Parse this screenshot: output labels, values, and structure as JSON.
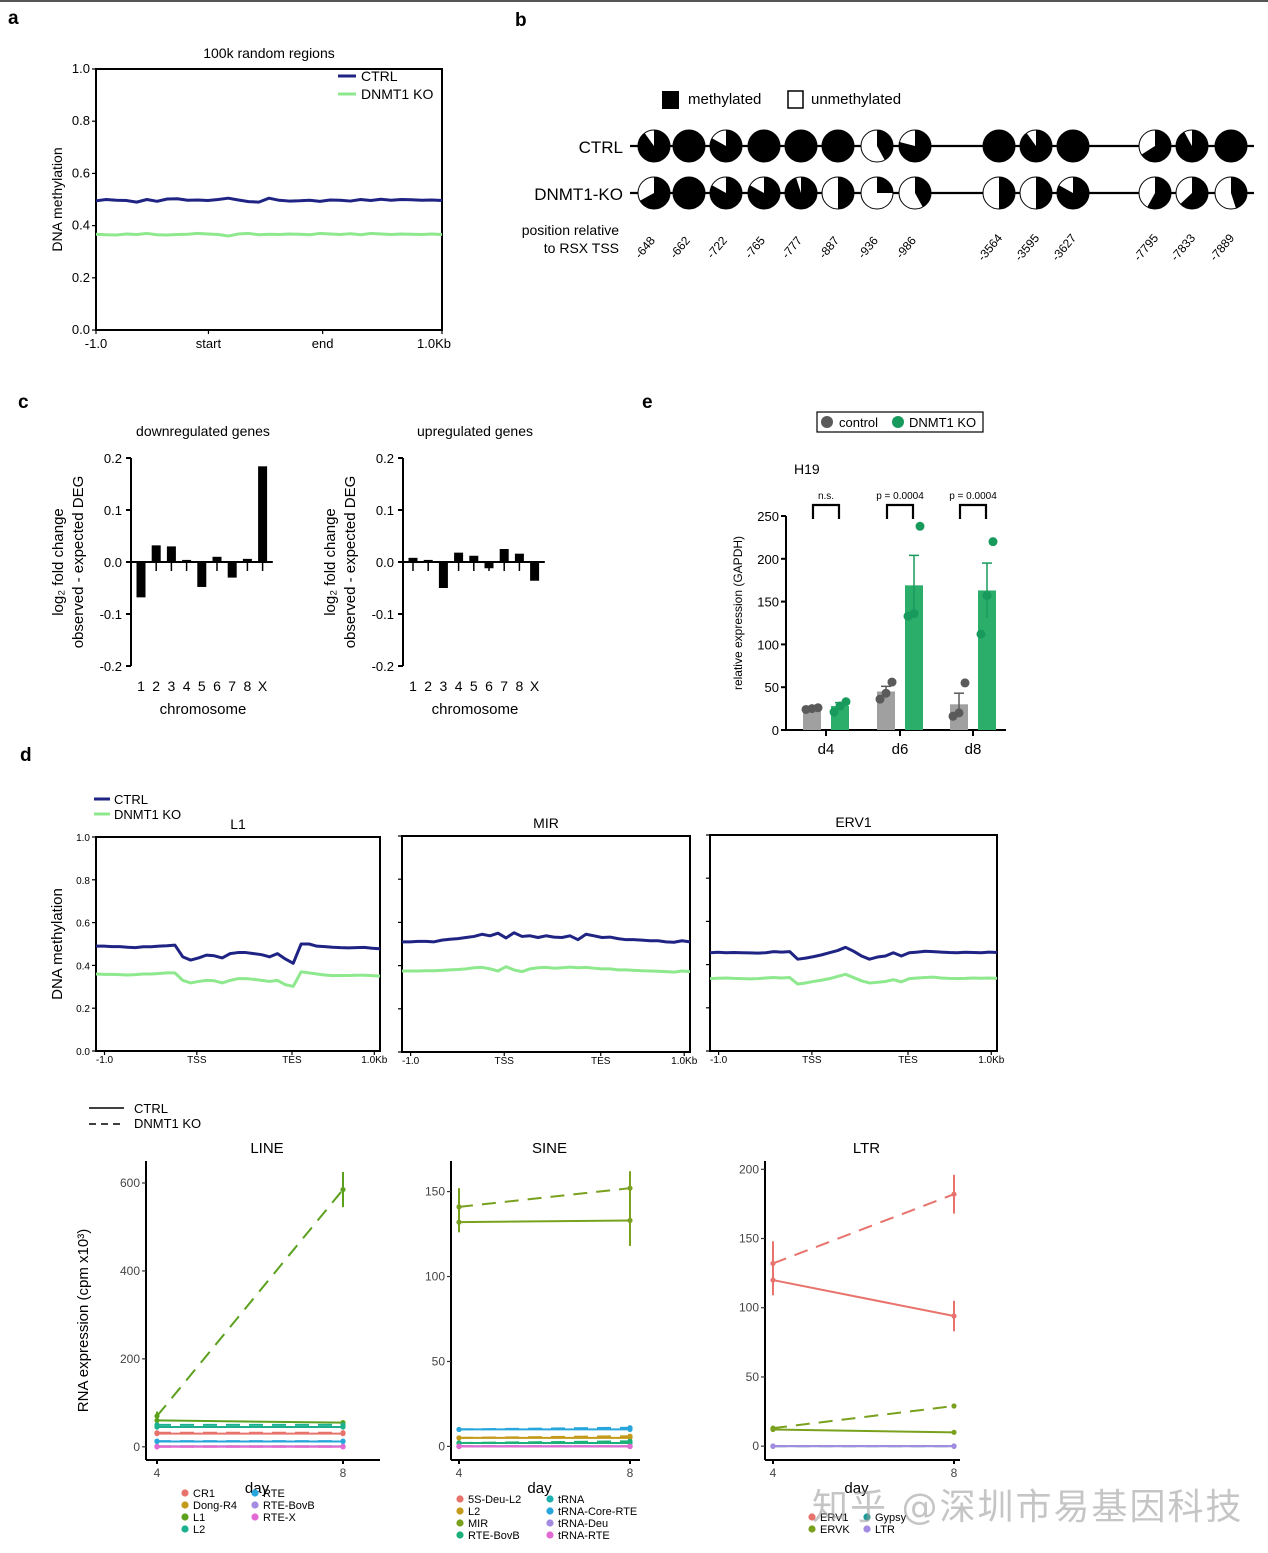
{
  "panels": {
    "a": "a",
    "b": "b",
    "c": "c",
    "d": "d",
    "e": "e"
  },
  "watermark": "知乎 @深圳市易基因科技",
  "colors": {
    "ctrl_meth": "#1f2383",
    "ko_meth": "#8ee88e",
    "black": "#000000",
    "grey": "#a0a0a0",
    "grey_dot": "#5a5a5a",
    "green": "#2aae6a",
    "green_dot": "#189a5c"
  },
  "chart_data": [
    {
      "id": "a",
      "type": "line",
      "title": "100k random regions",
      "xlabel": "",
      "ylabel": "DNA methylation",
      "ylim": [
        0,
        1.0
      ],
      "yticks": [
        "0.0",
        "0.2",
        "0.4",
        "0.6",
        "0.8",
        "1.0"
      ],
      "xticks": [
        "-1.0",
        "start",
        "end",
        "1.0Kb"
      ],
      "legend": "top-right",
      "series": [
        {
          "name": "CTRL",
          "color": "#1f2383",
          "values": [
            0.495,
            0.5,
            0.497,
            0.496,
            0.49,
            0.5,
            0.493,
            0.502,
            0.503,
            0.497,
            0.498,
            0.496,
            0.5,
            0.505,
            0.498,
            0.492,
            0.49,
            0.505,
            0.497,
            0.494,
            0.495,
            0.497,
            0.493,
            0.498,
            0.497,
            0.494,
            0.5,
            0.496,
            0.501,
            0.497,
            0.5,
            0.499,
            0.497,
            0.498,
            0.496
          ]
        },
        {
          "name": "DNMT1 KO",
          "color": "#8ee88e",
          "values": [
            0.367,
            0.365,
            0.364,
            0.368,
            0.366,
            0.37,
            0.365,
            0.364,
            0.366,
            0.367,
            0.37,
            0.368,
            0.366,
            0.36,
            0.368,
            0.37,
            0.365,
            0.367,
            0.366,
            0.368,
            0.367,
            0.365,
            0.37,
            0.368,
            0.366,
            0.369,
            0.365,
            0.37,
            0.368,
            0.366,
            0.368,
            0.367,
            0.366,
            0.368,
            0.366
          ]
        }
      ]
    },
    {
      "id": "b",
      "type": "pie",
      "legend": [
        {
          "label": "methylated"
        },
        {
          "label": "unmethylated"
        }
      ],
      "row_labels": [
        "CTRL",
        "DNMT1-KO"
      ],
      "axis_label": [
        "position relative",
        "to RSX TSS"
      ],
      "positions": [
        "-648",
        "-662",
        "-722",
        "-765",
        "-777",
        "-887",
        "-936",
        "-986",
        "-3564",
        "-3595",
        "-3627",
        "-7795",
        "-7833",
        "-7889"
      ],
      "groups": [
        8,
        3,
        3
      ],
      "methylated_fraction": {
        "CTRL": [
          0.9,
          1.0,
          0.83,
          1.0,
          1.0,
          1.0,
          0.42,
          0.79,
          1.0,
          0.9,
          1.0,
          0.66,
          0.92,
          1.0
        ],
        "DNMT1-KO": [
          0.67,
          1.0,
          0.83,
          0.83,
          0.95,
          0.5,
          0.25,
          0.42,
          0.5,
          0.5,
          0.83,
          0.58,
          0.63,
          0.45
        ]
      }
    },
    {
      "id": "c-down",
      "type": "bar",
      "title": "downregulated genes",
      "xlabel": "chromosome",
      "ylabel": [
        "log₂ fold change",
        "observed - expected DEG"
      ],
      "ylim": [
        -0.2,
        0.2
      ],
      "yticks": [
        "-0.2",
        "-0.1",
        "0.0",
        "0.1",
        "0.2"
      ],
      "categories": [
        "1",
        "2",
        "3",
        "4",
        "5",
        "6",
        "7",
        "8",
        "X"
      ],
      "values": [
        -0.068,
        0.032,
        0.03,
        0.004,
        -0.048,
        0.01,
        -0.03,
        0.006,
        0.184
      ]
    },
    {
      "id": "c-up",
      "type": "bar",
      "title": "upregulated genes",
      "xlabel": "chromosome",
      "ylabel": [
        "log₂ fold change",
        "observed - expected DEG"
      ],
      "ylim": [
        -0.2,
        0.2
      ],
      "yticks": [
        "-0.2",
        "-0.1",
        "0.0",
        "0.1",
        "0.2"
      ],
      "categories": [
        "1",
        "2",
        "3",
        "4",
        "5",
        "6",
        "7",
        "8",
        "X"
      ],
      "values": [
        0.008,
        0.004,
        -0.05,
        0.018,
        0.012,
        -0.012,
        0.025,
        0.016,
        -0.036
      ]
    },
    {
      "id": "e",
      "type": "bar",
      "title": "H19",
      "ylabel": "relative expression (GAPDH)",
      "ylim": [
        0,
        250
      ],
      "yticks": [
        "0",
        "50",
        "100",
        "150",
        "200",
        "250"
      ],
      "categories": [
        "d4",
        "d6",
        "d8"
      ],
      "legend": "top",
      "significance": [
        "n.s.",
        "p = 0.0004",
        "p = 0.0004"
      ],
      "series": [
        {
          "name": "control",
          "means": [
            25,
            45,
            30
          ],
          "errors": [
            1,
            6,
            13
          ],
          "points": [
            [
              24,
              25,
              26
            ],
            [
              36,
              43,
              56
            ],
            [
              16,
              20,
              55
            ]
          ]
        },
        {
          "name": "DNMT1 KO",
          "means": [
            28,
            169,
            163
          ],
          "errors": [
            4,
            35,
            32
          ],
          "points": [
            [
              21,
              28,
              33
            ],
            [
              133,
              136,
              238
            ],
            [
              112,
              157,
              220
            ]
          ]
        }
      ]
    },
    {
      "id": "d-L1",
      "type": "line",
      "title": "L1",
      "ylabel": "DNA methylation",
      "ylim": [
        0,
        1.0
      ],
      "yticks": [
        "0.0",
        "0.2",
        "0.4",
        "0.6",
        "0.8",
        "1.0"
      ],
      "xticks": [
        "-1.0",
        "TSS",
        "TES",
        "1.0Kb"
      ],
      "legend": "top-left",
      "series": [
        {
          "name": "CTRL",
          "values": [
            0.49,
            0.49,
            0.488,
            0.488,
            0.485,
            0.483,
            0.487,
            0.487,
            0.49,
            0.492,
            0.495,
            0.44,
            0.425,
            0.435,
            0.448,
            0.445,
            0.435,
            0.455,
            0.46,
            0.46,
            0.455,
            0.45,
            0.44,
            0.455,
            0.43,
            0.41,
            0.5,
            0.5,
            0.49,
            0.488,
            0.485,
            0.483,
            0.482,
            0.483,
            0.484,
            0.48,
            0.478
          ]
        },
        {
          "name": "DNMT1 KO",
          "values": [
            0.36,
            0.358,
            0.358,
            0.357,
            0.355,
            0.357,
            0.36,
            0.36,
            0.362,
            0.365,
            0.365,
            0.33,
            0.318,
            0.325,
            0.33,
            0.328,
            0.318,
            0.33,
            0.338,
            0.338,
            0.335,
            0.33,
            0.325,
            0.33,
            0.31,
            0.302,
            0.37,
            0.365,
            0.36,
            0.355,
            0.352,
            0.353,
            0.353,
            0.354,
            0.354,
            0.352,
            0.35
          ]
        }
      ]
    },
    {
      "id": "d-MIR",
      "type": "line",
      "title": "MIR",
      "ylim": [
        0,
        1.0
      ],
      "xticks": [
        "-1.0",
        "TSS",
        "TES",
        "1.0Kb"
      ],
      "series": [
        {
          "name": "CTRL",
          "values": [
            0.51,
            0.51,
            0.512,
            0.512,
            0.51,
            0.518,
            0.522,
            0.525,
            0.53,
            0.535,
            0.545,
            0.538,
            0.55,
            0.528,
            0.552,
            0.535,
            0.538,
            0.53,
            0.538,
            0.532,
            0.53,
            0.538,
            0.52,
            0.545,
            0.538,
            0.53,
            0.532,
            0.525,
            0.52,
            0.52,
            0.518,
            0.515,
            0.515,
            0.51,
            0.508,
            0.515,
            0.51
          ]
        },
        {
          "name": "DNMT1 KO",
          "values": [
            0.375,
            0.375,
            0.375,
            0.376,
            0.376,
            0.378,
            0.38,
            0.382,
            0.385,
            0.39,
            0.392,
            0.385,
            0.375,
            0.395,
            0.38,
            0.372,
            0.385,
            0.39,
            0.392,
            0.388,
            0.39,
            0.393,
            0.39,
            0.392,
            0.388,
            0.385,
            0.385,
            0.38,
            0.38,
            0.378,
            0.376,
            0.375,
            0.374,
            0.372,
            0.37,
            0.375,
            0.372
          ]
        }
      ]
    },
    {
      "id": "d-ERV1",
      "type": "line",
      "title": "ERV1",
      "ylim": [
        0,
        1.0
      ],
      "xticks": [
        "-1.0",
        "TSS",
        "TES",
        "1.0Kb"
      ],
      "series": [
        {
          "name": "CTRL",
          "values": [
            0.455,
            0.457,
            0.455,
            0.456,
            0.455,
            0.454,
            0.453,
            0.455,
            0.46,
            0.458,
            0.46,
            0.425,
            0.43,
            0.437,
            0.445,
            0.455,
            0.465,
            0.48,
            0.462,
            0.44,
            0.425,
            0.435,
            0.44,
            0.455,
            0.44,
            0.455,
            0.458,
            0.462,
            0.46,
            0.458,
            0.456,
            0.455,
            0.457,
            0.456,
            0.455,
            0.458,
            0.456
          ]
        },
        {
          "name": "DNMT1 KO",
          "values": [
            0.335,
            0.337,
            0.338,
            0.336,
            0.335,
            0.334,
            0.335,
            0.338,
            0.34,
            0.338,
            0.34,
            0.31,
            0.315,
            0.322,
            0.328,
            0.335,
            0.345,
            0.355,
            0.34,
            0.325,
            0.315,
            0.318,
            0.322,
            0.33,
            0.32,
            0.335,
            0.338,
            0.34,
            0.342,
            0.338,
            0.336,
            0.335,
            0.336,
            0.338,
            0.337,
            0.338,
            0.336
          ]
        }
      ]
    },
    {
      "id": "d-LINE",
      "type": "line",
      "title": "LINE",
      "ylabel": "RNA expression (cpm x10³)",
      "xlabel": "day",
      "x": [
        4,
        8
      ],
      "ylim": [
        -30,
        650
      ],
      "yticks": [
        0,
        200,
        400,
        600
      ],
      "style_legend": [
        {
          "name": "CTRL",
          "dash": "solid"
        },
        {
          "name": "DNMT1 KO",
          "dash": "dashed"
        }
      ],
      "series": [
        {
          "name": "CR1",
          "color": "#e8736c",
          "ctrl": [
            30,
            30
          ],
          "ko": [
            32,
            32
          ]
        },
        {
          "name": "Dong-R4",
          "color": "#c49a1a",
          "ctrl": [
            1,
            1
          ],
          "ko": [
            1,
            1
          ]
        },
        {
          "name": "L1",
          "color": "#5ba11e",
          "ctrl": [
            60,
            55
          ],
          "ko": [
            70,
            585
          ],
          "ko_err": [
            10,
            40
          ]
        },
        {
          "name": "L2",
          "color": "#1cb08e",
          "ctrl": [
            45,
            45
          ],
          "ko": [
            50,
            50
          ]
        },
        {
          "name": "RTE",
          "color": "#27a6dc",
          "ctrl": [
            12,
            12
          ],
          "ko": [
            13,
            13
          ]
        },
        {
          "name": "RTE-BovB",
          "color": "#a48be2",
          "ctrl": [
            1,
            1
          ],
          "ko": [
            1,
            1
          ]
        },
        {
          "name": "RTE-X",
          "color": "#e36ad2",
          "ctrl": [
            0,
            0
          ],
          "ko": [
            0,
            0
          ]
        }
      ]
    },
    {
      "id": "d-SINE",
      "type": "line",
      "title": "SINE",
      "xlabel": "day",
      "x": [
        4,
        8
      ],
      "ylim": [
        -8,
        168
      ],
      "yticks": [
        0,
        50,
        100,
        150
      ],
      "series": [
        {
          "name": "5S-Deu-L2",
          "color": "#e8736c",
          "ctrl": [
            0,
            0
          ],
          "ko": [
            0,
            0
          ]
        },
        {
          "name": "L2",
          "color": "#c49a1a",
          "ctrl": [
            5,
            5
          ],
          "ko": [
            5,
            6
          ]
        },
        {
          "name": "MIR",
          "color": "#7aa11e",
          "ctrl": [
            132,
            133
          ],
          "ko": [
            141,
            152
          ],
          "ctrl_err": [
            6,
            15
          ],
          "ko_err": [
            11,
            10
          ]
        },
        {
          "name": "RTE-BovB",
          "color": "#1cb07a",
          "ctrl": [
            2,
            2
          ],
          "ko": [
            2,
            3
          ]
        },
        {
          "name": "tRNA",
          "color": "#1cb0b0",
          "ctrl": [
            0,
            0
          ],
          "ko": [
            0,
            0
          ]
        },
        {
          "name": "tRNA-Core-RTE",
          "color": "#27a6dc",
          "ctrl": [
            10,
            10
          ],
          "ko": [
            10,
            11
          ]
        },
        {
          "name": "tRNA-Deu",
          "color": "#a48be2",
          "ctrl": [
            0,
            0
          ],
          "ko": [
            0,
            0
          ]
        },
        {
          "name": "tRNA-RTE",
          "color": "#e36ad2",
          "ctrl": [
            0,
            0
          ],
          "ko": [
            0,
            0
          ]
        }
      ]
    },
    {
      "id": "d-LTR",
      "type": "line",
      "title": "LTR",
      "xlabel": "day",
      "x": [
        4,
        8
      ],
      "ylim": [
        -10,
        206
      ],
      "yticks": [
        0,
        50,
        100,
        150,
        200
      ],
      "series": [
        {
          "name": "ERV1",
          "color": "#e8736c",
          "ctrl": [
            120,
            94
          ],
          "ko": [
            132,
            182
          ],
          "ctrl_err": [
            11,
            11
          ],
          "ko_err": [
            16,
            14
          ]
        },
        {
          "name": "ERVK",
          "color": "#7aa11e",
          "ctrl": [
            12,
            10
          ],
          "ko": [
            13,
            29
          ]
        },
        {
          "name": "Gypsy",
          "color": "#1a9a9a",
          "ctrl": [
            0,
            0
          ],
          "ko": [
            0,
            0
          ]
        },
        {
          "name": "LTR",
          "color": "#a48be2",
          "ctrl": [
            0,
            0
          ],
          "ko": [
            0,
            0
          ]
        }
      ],
      "legend_labels": [
        "ERV1",
        "Gypsy",
        "ERVK",
        "LTR"
      ]
    }
  ]
}
